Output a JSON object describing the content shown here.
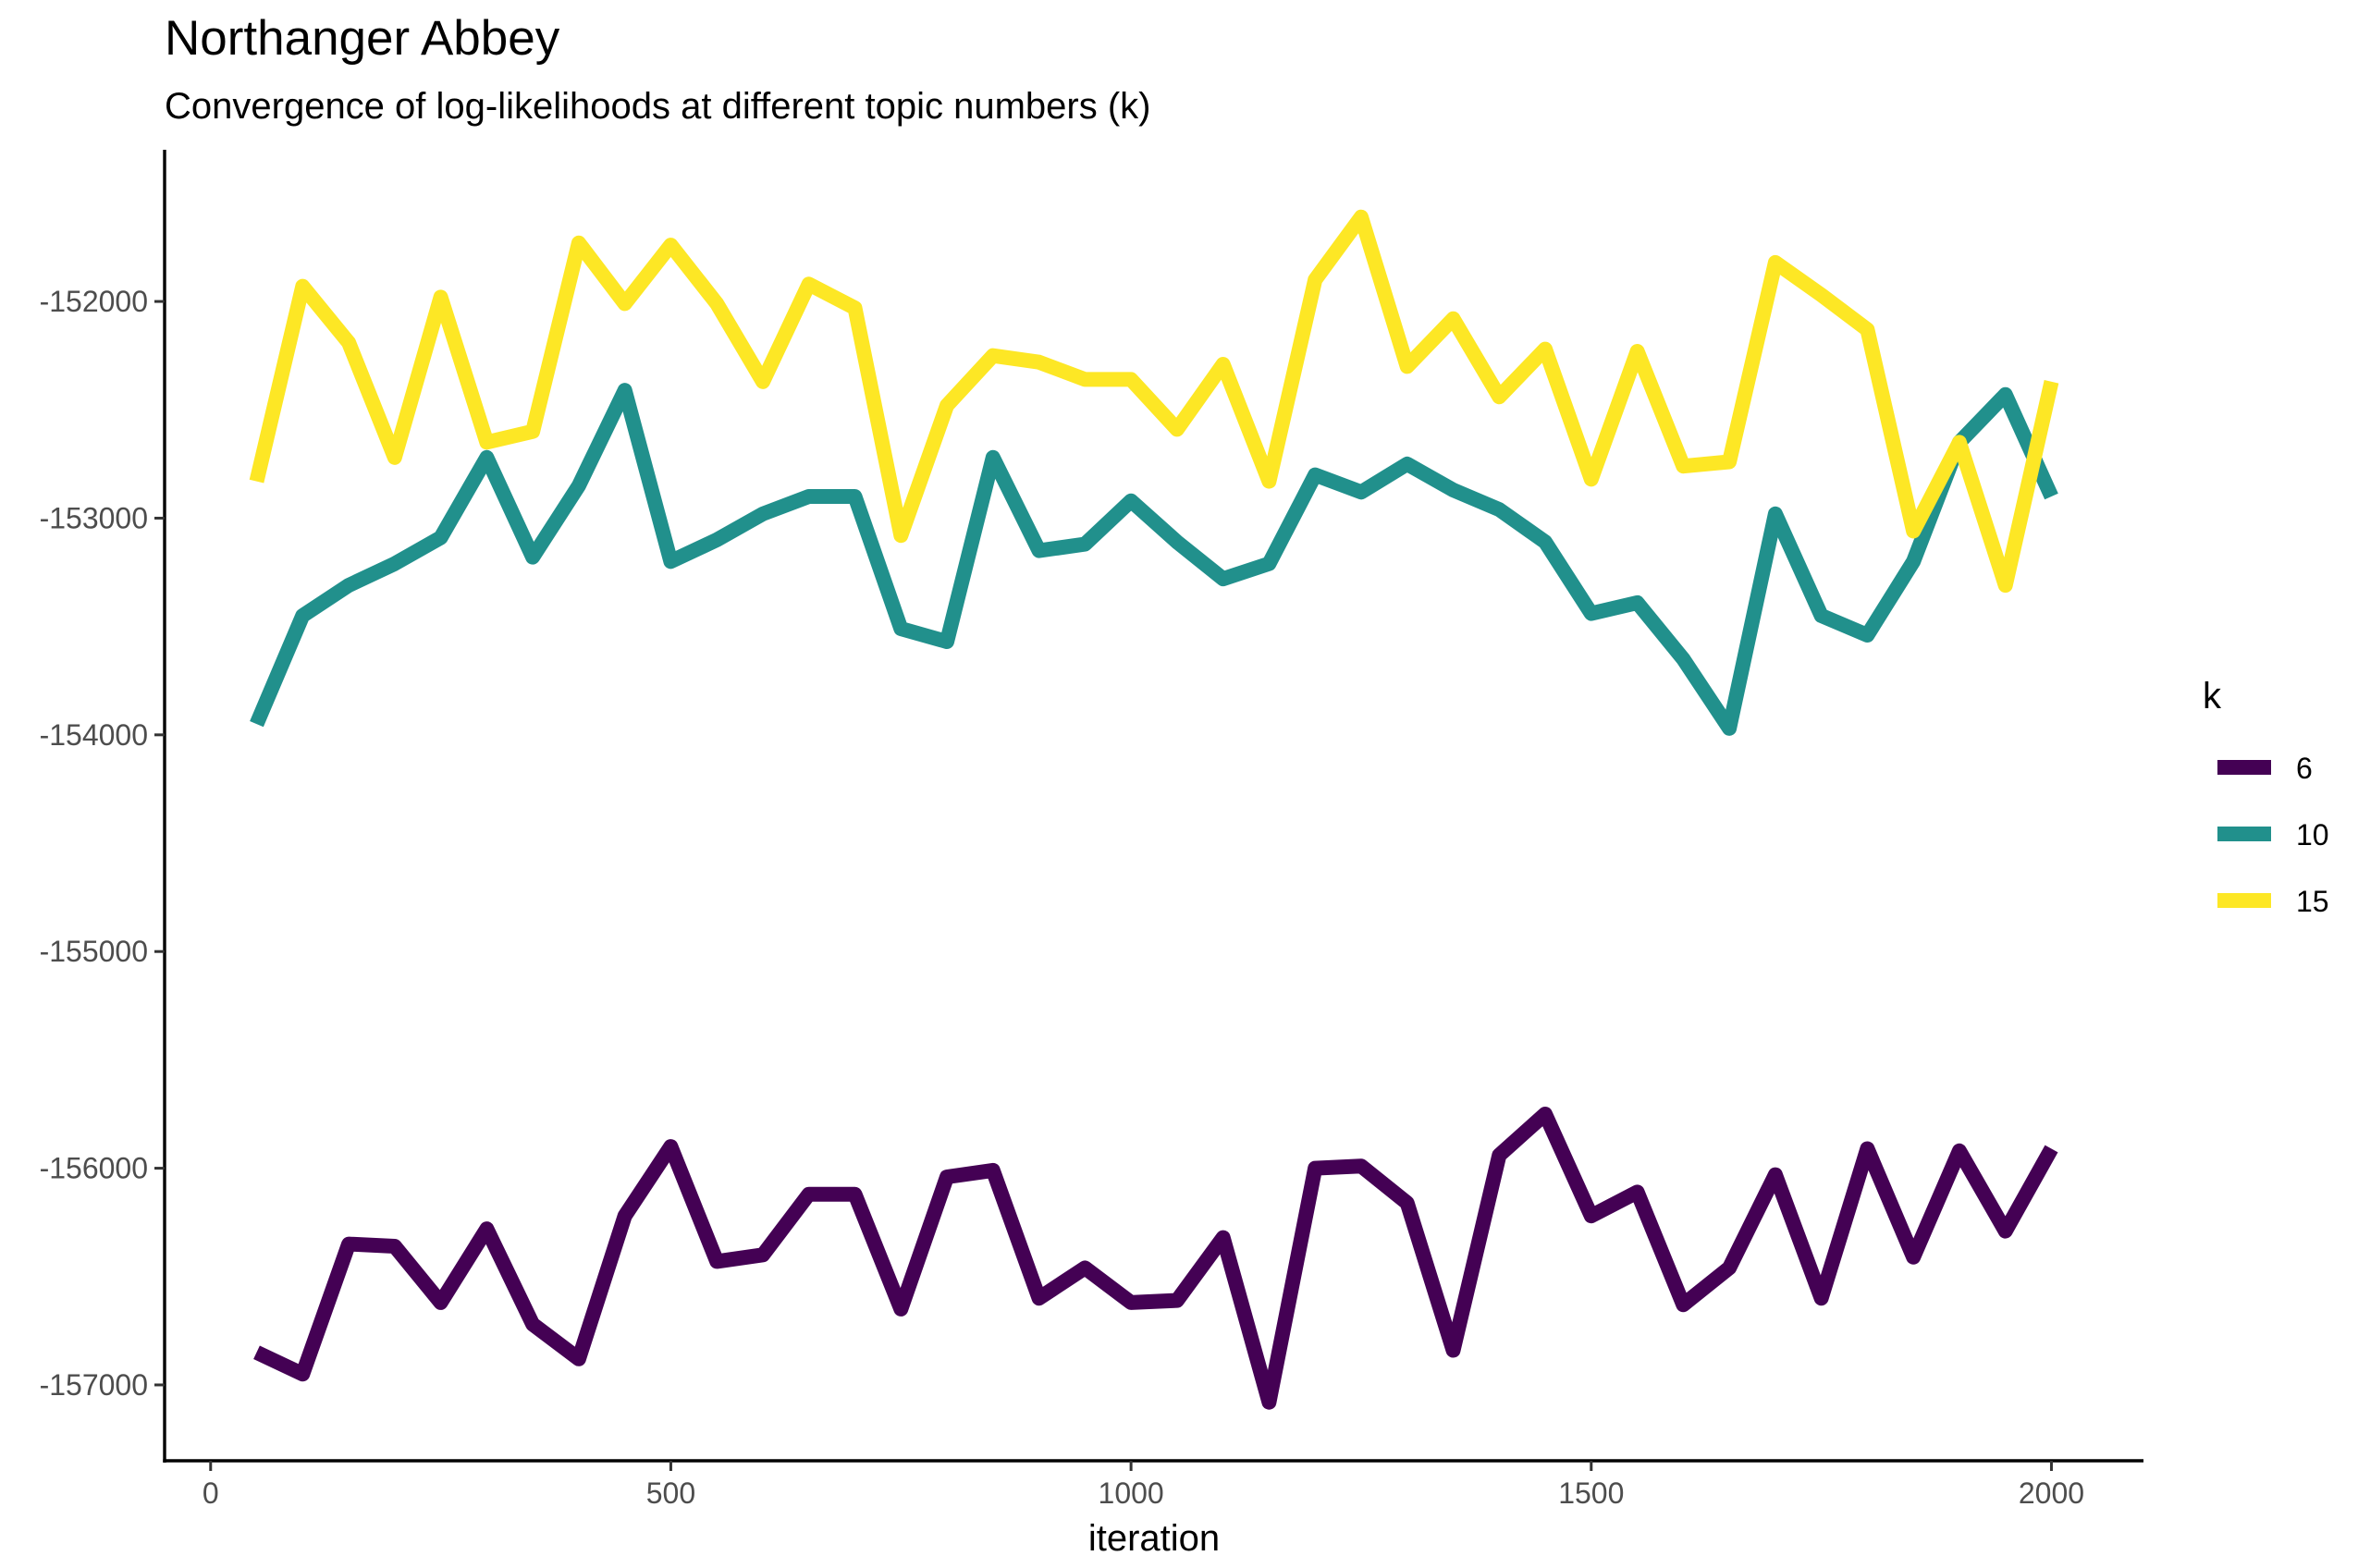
{
  "chart_data": {
    "type": "line",
    "title": "Northanger Abbey",
    "subtitle": "Convergence of log-likelihoods at different topic numbers (k)",
    "xlabel": "iteration",
    "ylabel": "",
    "xlim": [
      -50,
      2100
    ],
    "ylim": [
      -157350,
      -151300
    ],
    "x_ticks": [
      0,
      500,
      1000,
      1500,
      2000
    ],
    "x_tick_labels": [
      "0",
      "500",
      "1000",
      "1500",
      "2000"
    ],
    "y_ticks": [
      -152000,
      -153000,
      -154000,
      -155000,
      -156000,
      -157000
    ],
    "y_tick_labels": [
      "-152000",
      "-153000",
      "-154000",
      "-155000",
      "-156000",
      "-157000"
    ],
    "grid": false,
    "legend": {
      "title": "k",
      "position": "right"
    },
    "x": [
      50,
      100,
      150,
      200,
      250,
      300,
      350,
      400,
      450,
      500,
      550,
      600,
      650,
      700,
      750,
      800,
      850,
      900,
      950,
      1000,
      1050,
      1100,
      1150,
      1200,
      1250,
      1300,
      1350,
      1400,
      1450,
      1500,
      1550,
      1600,
      1650,
      1700,
      1750,
      1800,
      1850,
      1900,
      1950,
      2000
    ],
    "series": [
      {
        "name": "6",
        "color": "#440154",
        "values": [
          -156850,
          -156950,
          -156350,
          -156360,
          -156620,
          -156280,
          -156720,
          -156880,
          -156220,
          -155900,
          -156430,
          -156400,
          -156120,
          -156120,
          -156650,
          -156040,
          -156010,
          -156600,
          -156460,
          -156620,
          -156610,
          -156320,
          -157080,
          -156000,
          -155990,
          -156160,
          -156840,
          -155940,
          -155750,
          -156220,
          -156110,
          -156630,
          -156460,
          -156030,
          -156600,
          -155910,
          -156410,
          -155920,
          -156290,
          -155910
        ]
      },
      {
        "name": "10",
        "color": "#21908C",
        "values": [
          -153950,
          -153450,
          -153310,
          -153210,
          -153090,
          -152720,
          -153180,
          -152850,
          -152410,
          -153200,
          -153100,
          -152980,
          -152900,
          -152900,
          -153510,
          -153570,
          -152720,
          -153150,
          -153120,
          -152920,
          -153110,
          -153280,
          -153210,
          -152800,
          -152880,
          -152750,
          -152870,
          -152960,
          -153110,
          -153440,
          -153390,
          -153650,
          -153970,
          -152980,
          -153450,
          -153540,
          -153200,
          -152650,
          -152430,
          -152900
        ]
      },
      {
        "name": "15",
        "color": "#FDE725",
        "values": [
          -152830,
          -151930,
          -152190,
          -152720,
          -151980,
          -152650,
          -152600,
          -151730,
          -152010,
          -151740,
          -152010,
          -152370,
          -151920,
          -152030,
          -153080,
          -152480,
          -152250,
          -152280,
          -152360,
          -152360,
          -152590,
          -152290,
          -152830,
          -151900,
          -151610,
          -152300,
          -152080,
          -152440,
          -152220,
          -152820,
          -152230,
          -152760,
          -152740,
          -151820,
          -151970,
          -152130,
          -153060,
          -152650,
          -153310,
          -152370
        ]
      }
    ]
  }
}
